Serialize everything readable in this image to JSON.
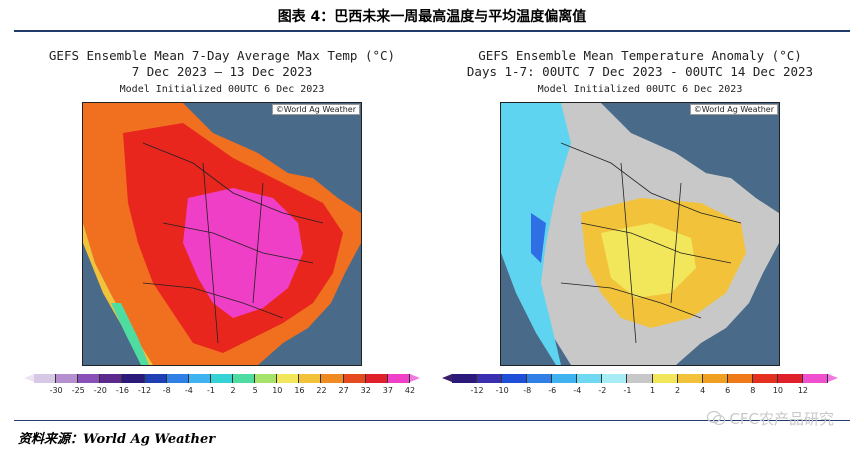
{
  "figure": {
    "title": "图表 4：巴西未来一周最高温度与平均温度偏离值",
    "source": "资料来源：World Ag Weather",
    "watermark": "CFC农产品研究"
  },
  "panels": [
    {
      "title_line1": "GEFS Ensemble Mean 7-Day Average Max Temp (°C)",
      "title_line2": "7 Dec 2023 – 13 Dec 2023",
      "title_line3": "Model Initialized 00UTC 6 Dec 2023",
      "copyright": "©World Ag Weather",
      "scale": {
        "labels": [
          "-30",
          "-25",
          "-20",
          "-16",
          "-12",
          "-8",
          "-4",
          "-1",
          "2",
          "5",
          "10",
          "16",
          "22",
          "27",
          "32",
          "37",
          "42"
        ],
        "colors": [
          "#d7c8e6",
          "#b58fd0",
          "#8b4fb8",
          "#5b2a8c",
          "#2b1a7a",
          "#1f3fb5",
          "#2f7fe6",
          "#3fb3f0",
          "#36d3d6",
          "#4fdca0",
          "#a6e36a",
          "#f2e65a",
          "#f2c33a",
          "#f08a22",
          "#e64a1f",
          "#e0202a",
          "#f040c8"
        ],
        "left_tri": "#ece4f4",
        "right_tri": "#f07ae0"
      }
    },
    {
      "title_line1": "GEFS Ensemble Mean Temperature Anomaly (°C)",
      "title_line2": "Days 1-7: 00UTC 7 Dec 2023 - 00UTC 14 Dec 2023",
      "title_line3": "Model Initialized 00UTC 6 Dec 2023",
      "copyright": "©World Ag Weather",
      "scale": {
        "labels": [
          "-12",
          "-10",
          "-8",
          "-6",
          "-4",
          "-2",
          "-1",
          "1",
          "2",
          "4",
          "6",
          "8",
          "10",
          "12"
        ],
        "colors": [
          "#2b1a7a",
          "#3a2fb0",
          "#1f4fd6",
          "#2f7fe6",
          "#3fb3f0",
          "#6fd8f2",
          "#a8ecf6",
          "#c8c8c8",
          "#f2e65a",
          "#f2c33a",
          "#f0a020",
          "#f07a1a",
          "#e6301f",
          "#e0202a",
          "#f050d0"
        ],
        "left_tri": "#3a1f6a",
        "right_tri": "#f07ae0"
      }
    }
  ]
}
